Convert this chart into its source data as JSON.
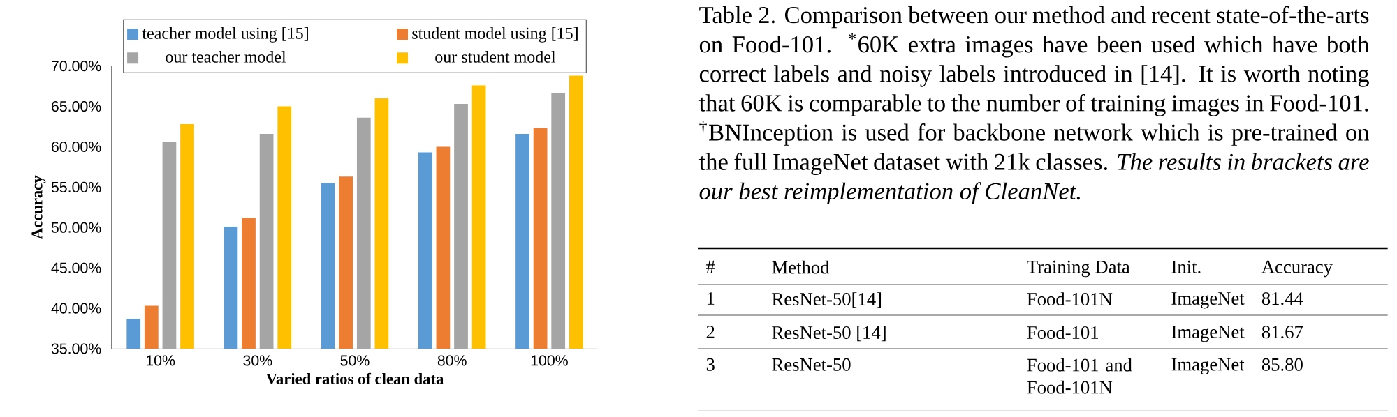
{
  "chart_data": [
    {
      "type": "bar",
      "xlabel": "Varied ratios of clean data",
      "ylabel": "Accuracy",
      "categories": [
        "10%",
        "30%",
        "50%",
        "80%",
        "100%"
      ],
      "series": [
        {
          "name": "teacher model using [15]",
          "color": "#5b9bd5",
          "values": [
            38.7,
            50.1,
            55.5,
            59.3,
            61.6
          ]
        },
        {
          "name": "student model using [15]",
          "color": "#ed7d31",
          "values": [
            40.3,
            51.2,
            56.3,
            60.0,
            62.3
          ]
        },
        {
          "name": "our teacher model",
          "color": "#a5a5a5",
          "values": [
            60.6,
            61.6,
            63.6,
            65.3,
            66.7
          ]
        },
        {
          "name": "our student model",
          "color": "#ffc000",
          "values": [
            62.8,
            65.0,
            66.0,
            67.6,
            68.8
          ]
        }
      ],
      "ylim": [
        35,
        70
      ],
      "yticks": [
        {
          "value": 35,
          "label": "35.00%"
        },
        {
          "value": 40,
          "label": "40.00%"
        },
        {
          "value": 45,
          "label": "45.00%"
        },
        {
          "value": 50,
          "label": "50.00%"
        },
        {
          "value": 55,
          "label": "55.00%"
        },
        {
          "value": 60,
          "label": "60.00%"
        },
        {
          "value": 65,
          "label": "65.00%"
        },
        {
          "value": 70,
          "label": "70.00%"
        }
      ],
      "legend": "top"
    },
    {
      "type": "other",
      "title": "Table 2. Comparison between our method and recent state-of-the-arts on Food-101. $^{*}$60K extra images have been used which have both correct labels and noisy labels introduced in [14]. It is worth noting that 60K is comparable to the number of training images in Food-101. $^{†}$BNInception is used for backbone network which is pre-trained on the full ImageNet dataset with 21k classes.",
      "subtitle": "The results in brackets are our best reimplementation of CleanNet.",
      "categories": [
        "#",
        "Method",
        "Training Data",
        "Init.",
        "Accuracy"
      ],
      "annotations": [
        "1",
        "ResNet-50[14]",
        "Food-101N",
        "ImageNet",
        "81.44",
        "2",
        "ResNet-50 [14]",
        "Food-101",
        "ImageNet",
        "81.67",
        "3",
        "ResNet-50",
        "Food-101 and Food-101N",
        "ImageNet",
        "85.80"
      ]
    }
  ]
}
